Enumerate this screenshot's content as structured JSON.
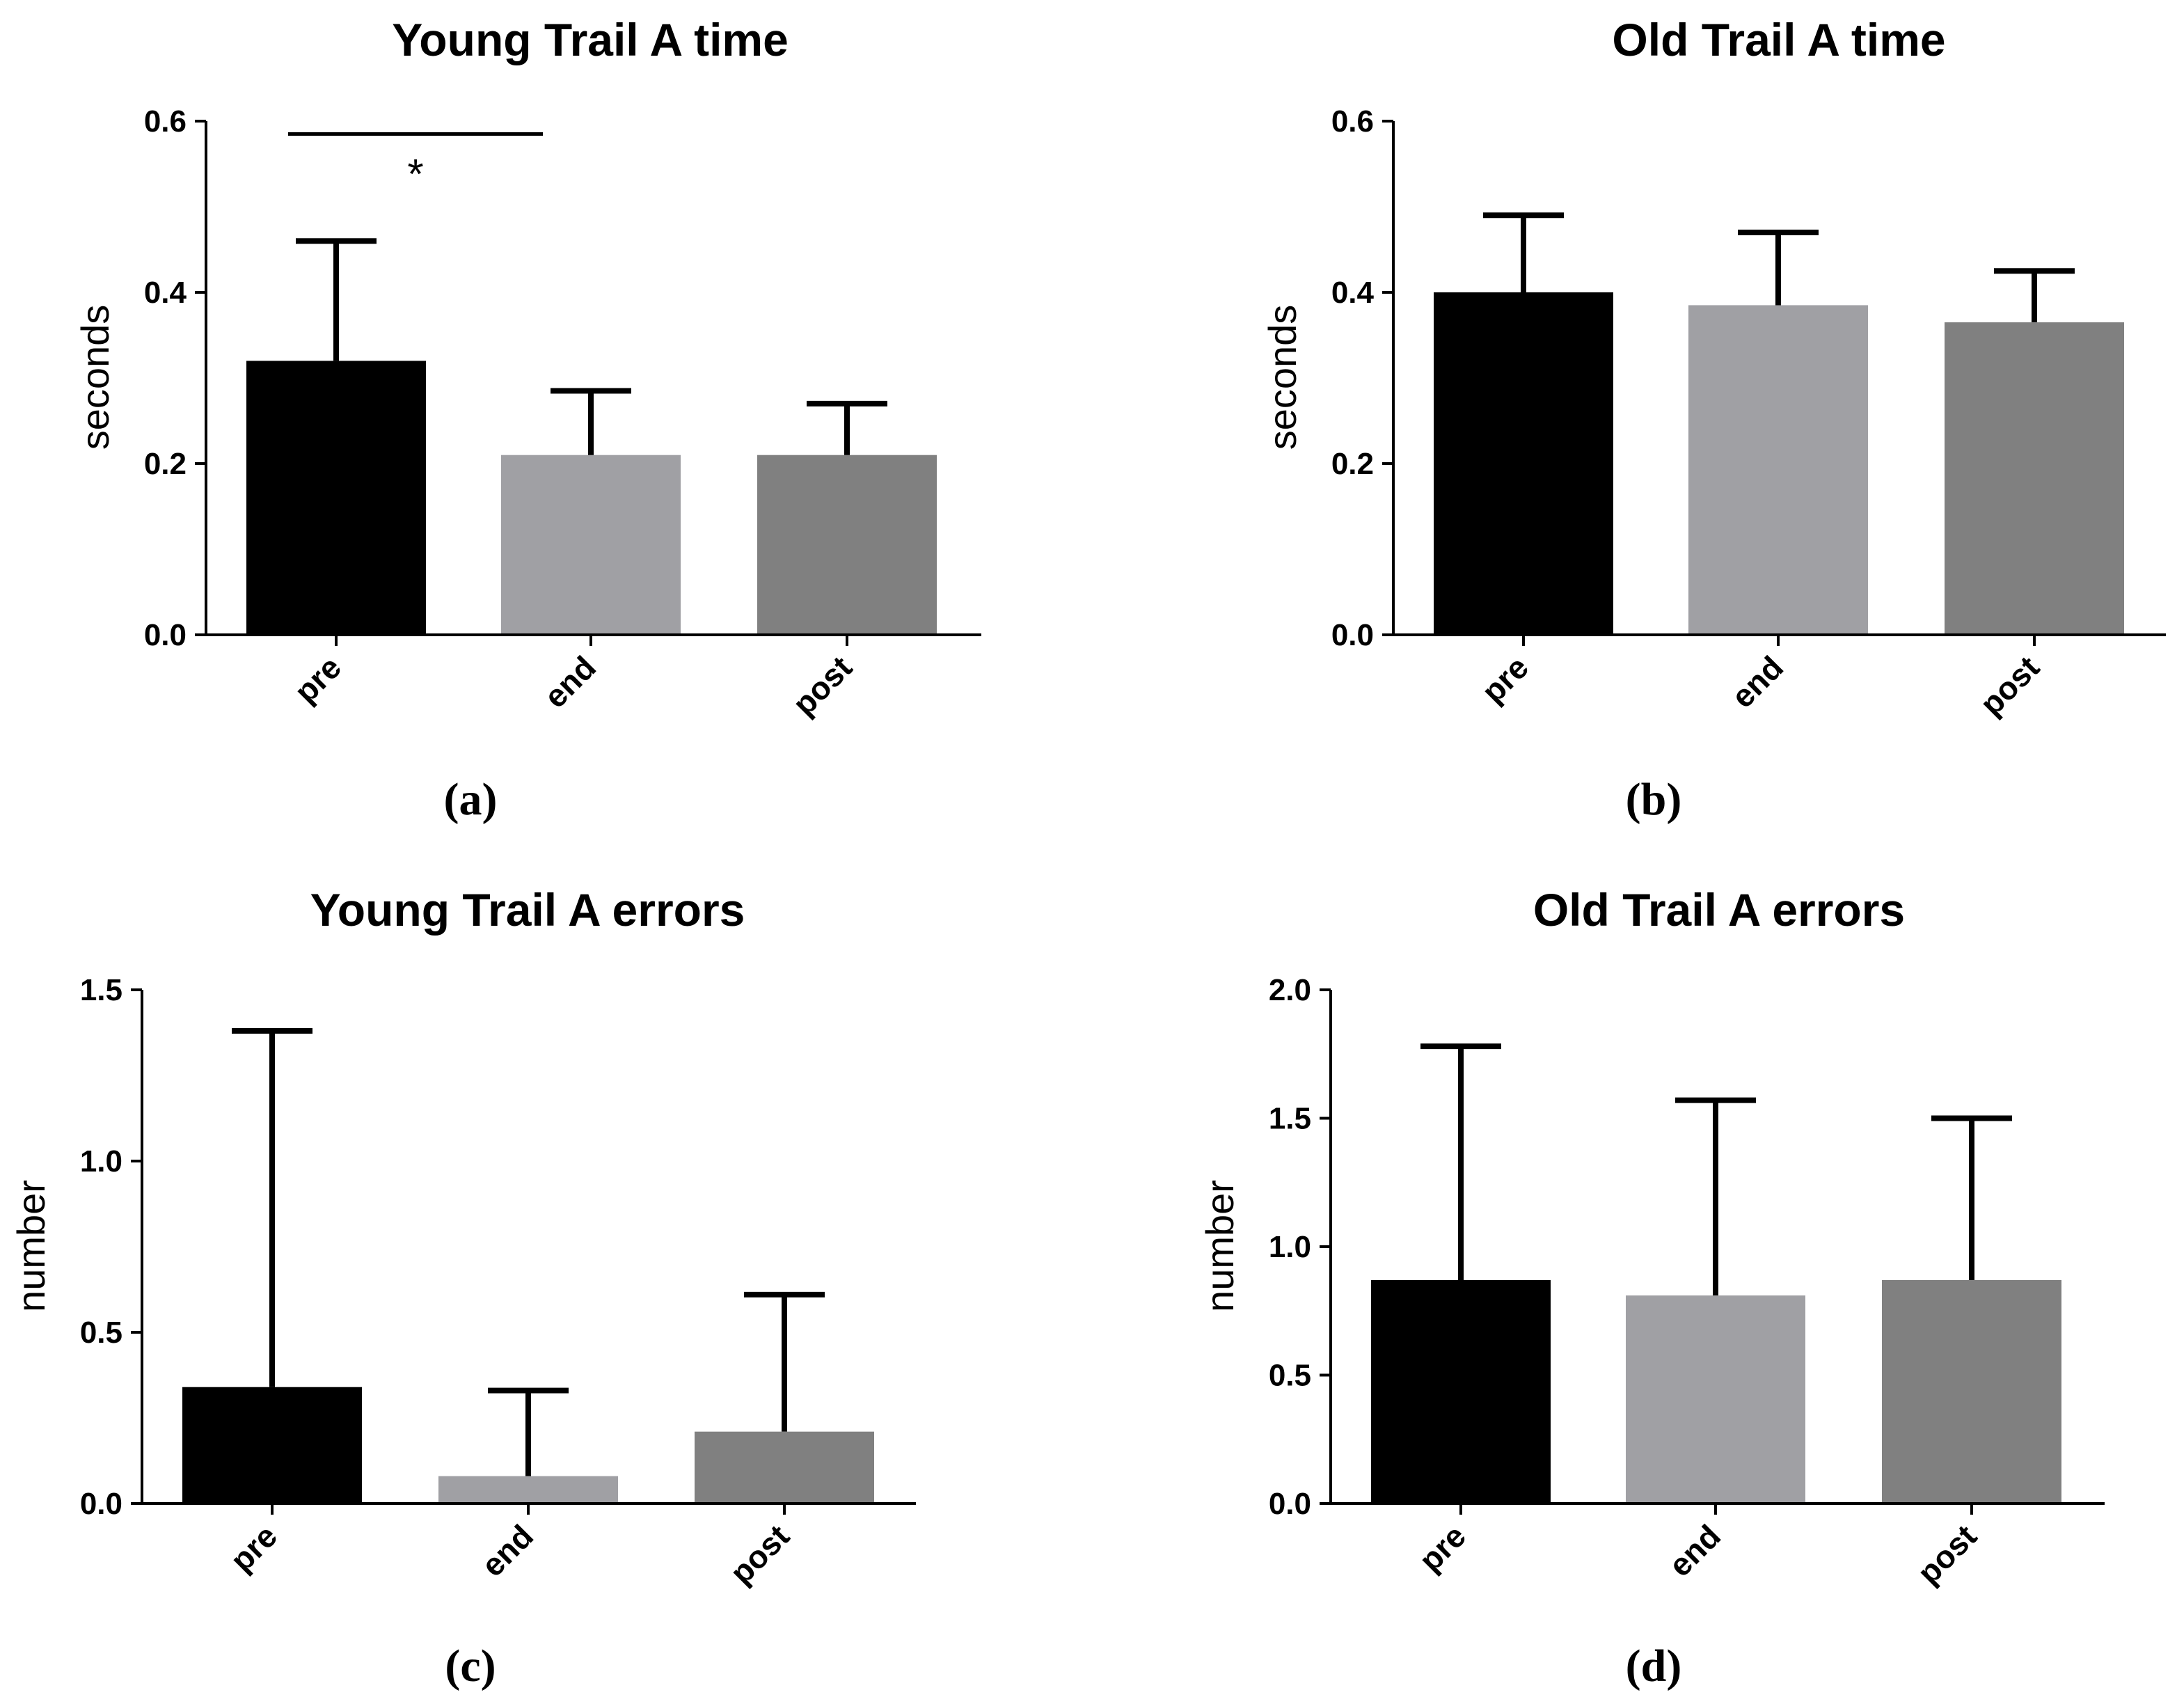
{
  "chart_data": [
    {
      "type": "bar",
      "title": "Young Trail A time",
      "panel_label": "(a)",
      "ylabel": "seconds",
      "xlabel": "",
      "categories": [
        "pre",
        "end",
        "post"
      ],
      "values": [
        0.32,
        0.21,
        0.21
      ],
      "error_upper": [
        0.46,
        0.285,
        0.27
      ],
      "bar_colors": [
        "#000000",
        "#a0a0a4",
        "#808080"
      ],
      "ylim": [
        0,
        0.6
      ],
      "yticks": [
        "0.0",
        "0.2",
        "0.4",
        "0.6"
      ],
      "significance": {
        "from": "pre",
        "to": "end",
        "mark": "*",
        "y": 0.585
      }
    },
    {
      "type": "bar",
      "title": "Old Trail A time",
      "panel_label": "(b)",
      "ylabel": "seconds",
      "xlabel": "",
      "categories": [
        "pre",
        "end",
        "post"
      ],
      "values": [
        0.4,
        0.385,
        0.365
      ],
      "error_upper": [
        0.49,
        0.47,
        0.425
      ],
      "bar_colors": [
        "#000000",
        "#a0a0a4",
        "#808080"
      ],
      "ylim": [
        0,
        0.6
      ],
      "yticks": [
        "0.0",
        "0.2",
        "0.4",
        "0.6"
      ]
    },
    {
      "type": "bar",
      "title": "Young Trail A errors",
      "panel_label": "(c)",
      "ylabel": "number",
      "xlabel": "",
      "categories": [
        "pre",
        "end",
        "post"
      ],
      "values": [
        0.34,
        0.08,
        0.21
      ],
      "error_upper": [
        1.38,
        0.33,
        0.61
      ],
      "bar_colors": [
        "#000000",
        "#a0a0a4",
        "#808080"
      ],
      "ylim": [
        0,
        1.5
      ],
      "yticks": [
        "0.0",
        "0.5",
        "1.0",
        "1.5"
      ]
    },
    {
      "type": "bar",
      "title": "Old Trail A errors",
      "panel_label": "(d)",
      "ylabel": "number",
      "xlabel": "",
      "categories": [
        "pre",
        "end",
        "post"
      ],
      "values": [
        0.87,
        0.81,
        0.87
      ],
      "error_upper": [
        1.78,
        1.57,
        1.5
      ],
      "bar_colors": [
        "#000000",
        "#a0a0a4",
        "#808080"
      ],
      "ylim": [
        0,
        2.0
      ],
      "yticks": [
        "0.0",
        "0.5",
        "1.0",
        "1.5",
        "2.0"
      ]
    }
  ]
}
